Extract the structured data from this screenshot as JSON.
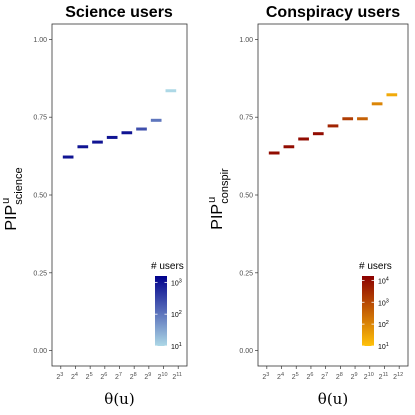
{
  "chart_data": [
    {
      "type": "line",
      "title": "Science users",
      "xlabel": "θ(u)",
      "ylabel": {
        "main": "PIP",
        "sup": "u",
        "sub": "science"
      },
      "x_ticks": [
        "3",
        "4",
        "5",
        "6",
        "7",
        "8",
        "9",
        "10",
        "11"
      ],
      "x_tick_base": "2",
      "ylim": [
        0,
        1
      ],
      "y_ticks": [
        "0.00",
        "0.25",
        "0.50",
        "0.75",
        "1.00"
      ],
      "y_tick_values": [
        0,
        0.25,
        0.5,
        0.75,
        1.0
      ],
      "segments": [
        {
          "x": "3",
          "y": 0.622,
          "users_log10": 3.0
        },
        {
          "x": "4",
          "y": 0.655,
          "users_log10": 3.0
        },
        {
          "x": "5",
          "y": 0.67,
          "users_log10": 3.0
        },
        {
          "x": "6",
          "y": 0.685,
          "users_log10": 3.0
        },
        {
          "x": "7",
          "y": 0.7,
          "users_log10": 3.0
        },
        {
          "x": "8",
          "y": 0.712,
          "users_log10": 2.4
        },
        {
          "x": "9",
          "y": 0.74,
          "users_log10": 2.0
        },
        {
          "x": "10",
          "y": 0.835,
          "users_log10": 1.0
        }
      ],
      "legend": {
        "title": "# users",
        "labels": [
          {
            "base": "10",
            "exp": "3",
            "value_log10": 3
          },
          {
            "base": "10",
            "exp": "2",
            "value_log10": 2
          },
          {
            "base": "10",
            "exp": "1",
            "value_log10": 1
          }
        ],
        "range_log10": [
          1,
          3.2
        ],
        "color_low": "#add8e6",
        "color_high": "#00008b",
        "placement": "bottom-right"
      }
    },
    {
      "type": "line",
      "title": "Conspiracy users",
      "xlabel": "θ(u)",
      "ylabel": {
        "main": "PIP",
        "sup": "u",
        "sub": "conspir"
      },
      "x_ticks": [
        "3",
        "4",
        "5",
        "6",
        "7",
        "8",
        "9",
        "10",
        "11",
        "12"
      ],
      "x_tick_base": "2",
      "ylim": [
        0,
        1
      ],
      "y_ticks": [
        "0.00",
        "0.25",
        "0.50",
        "0.75",
        "1.00"
      ],
      "y_tick_values": [
        0,
        0.25,
        0.5,
        0.75,
        1.0
      ],
      "segments": [
        {
          "x": "3",
          "y": 0.635,
          "users_log10": 4.0
        },
        {
          "x": "4",
          "y": 0.655,
          "users_log10": 4.0
        },
        {
          "x": "5",
          "y": 0.68,
          "users_log10": 4.0
        },
        {
          "x": "6",
          "y": 0.697,
          "users_log10": 4.0
        },
        {
          "x": "7",
          "y": 0.722,
          "users_log10": 3.6
        },
        {
          "x": "8",
          "y": 0.745,
          "users_log10": 3.2
        },
        {
          "x": "9",
          "y": 0.745,
          "users_log10": 2.6
        },
        {
          "x": "10",
          "y": 0.793,
          "users_log10": 2.0
        },
        {
          "x": "11",
          "y": 0.822,
          "users_log10": 1.4
        }
      ],
      "legend": {
        "title": "# users",
        "labels": [
          {
            "base": "10",
            "exp": "4",
            "value_log10": 4
          },
          {
            "base": "10",
            "exp": "3",
            "value_log10": 3
          },
          {
            "base": "10",
            "exp": "2",
            "value_log10": 2
          },
          {
            "base": "10",
            "exp": "1",
            "value_log10": 1
          }
        ],
        "range_log10": [
          1,
          4.2
        ],
        "color_low": "#ffc20a",
        "color_high": "#8b0000",
        "placement": "bottom-right"
      }
    }
  ]
}
